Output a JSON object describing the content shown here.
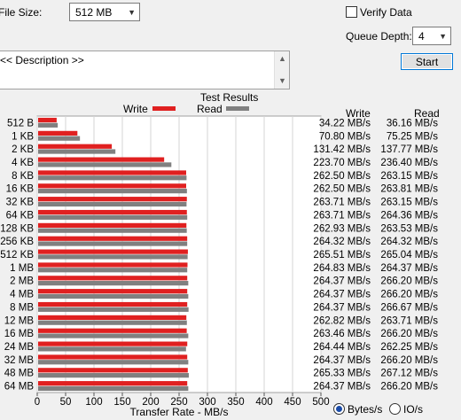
{
  "file_size": {
    "label": "File Size:",
    "value": "512 MB"
  },
  "verify_data": {
    "label": "Verify Data",
    "checked": false
  },
  "queue_depth": {
    "label": "Queue Depth:",
    "value": "4"
  },
  "start_button": "Start",
  "description": "<< Description >>",
  "results": {
    "title": "Test Results",
    "write_label": "Write",
    "read_label": "Read"
  },
  "columns": {
    "write": "Write",
    "read": "Read"
  },
  "units": {
    "bytes": "Bytes/s",
    "io": "IO/s",
    "selected": "bytes"
  },
  "colors": {
    "write": "#e02020",
    "read": "#808080"
  },
  "chart_data": {
    "type": "bar",
    "orientation": "horizontal",
    "xlabel": "Transfer Rate - MB/s",
    "xlim": [
      0,
      500
    ],
    "xticks": [
      0,
      50,
      100,
      150,
      200,
      250,
      300,
      350,
      400,
      450,
      500
    ],
    "grid": true,
    "legend": "top-center",
    "categories": [
      "512 B",
      "1 KB",
      "2 KB",
      "4 KB",
      "8 KB",
      "16 KB",
      "32 KB",
      "64 KB",
      "128 KB",
      "256 KB",
      "512 KB",
      "1 MB",
      "2 MB",
      "4 MB",
      "8 MB",
      "12 MB",
      "16 MB",
      "24 MB",
      "32 MB",
      "48 MB",
      "64 MB"
    ],
    "series": [
      {
        "name": "Write",
        "values": [
          34.22,
          70.8,
          131.42,
          223.7,
          262.5,
          262.5,
          263.71,
          263.71,
          262.93,
          264.32,
          265.51,
          264.83,
          264.37,
          264.37,
          264.37,
          262.82,
          263.46,
          264.44,
          264.37,
          265.33,
          264.37
        ]
      },
      {
        "name": "Read",
        "values": [
          36.16,
          75.25,
          137.77,
          236.4,
          263.15,
          263.81,
          263.15,
          264.36,
          263.53,
          264.32,
          265.04,
          264.37,
          266.2,
          266.2,
          266.67,
          263.71,
          266.2,
          262.25,
          266.2,
          267.12,
          266.2
        ]
      }
    ],
    "write_text": [
      "34.22 MB/s",
      "70.80 MB/s",
      "131.42 MB/s",
      "223.70 MB/s",
      "262.50 MB/s",
      "262.50 MB/s",
      "263.71 MB/s",
      "263.71 MB/s",
      "262.93 MB/s",
      "264.32 MB/s",
      "265.51 MB/s",
      "264.83 MB/s",
      "264.37 MB/s",
      "264.37 MB/s",
      "264.37 MB/s",
      "262.82 MB/s",
      "263.46 MB/s",
      "264.44 MB/s",
      "264.37 MB/s",
      "265.33 MB/s",
      "264.37 MB/s"
    ],
    "read_text": [
      "36.16 MB/s",
      "75.25 MB/s",
      "137.77 MB/s",
      "236.40 MB/s",
      "263.15 MB/s",
      "263.81 MB/s",
      "263.15 MB/s",
      "264.36 MB/s",
      "263.53 MB/s",
      "264.32 MB/s",
      "265.04 MB/s",
      "264.37 MB/s",
      "266.20 MB/s",
      "266.20 MB/s",
      "266.67 MB/s",
      "263.71 MB/s",
      "266.20 MB/s",
      "262.25 MB/s",
      "266.20 MB/s",
      "267.12 MB/s",
      "266.20 MB/s"
    ]
  }
}
